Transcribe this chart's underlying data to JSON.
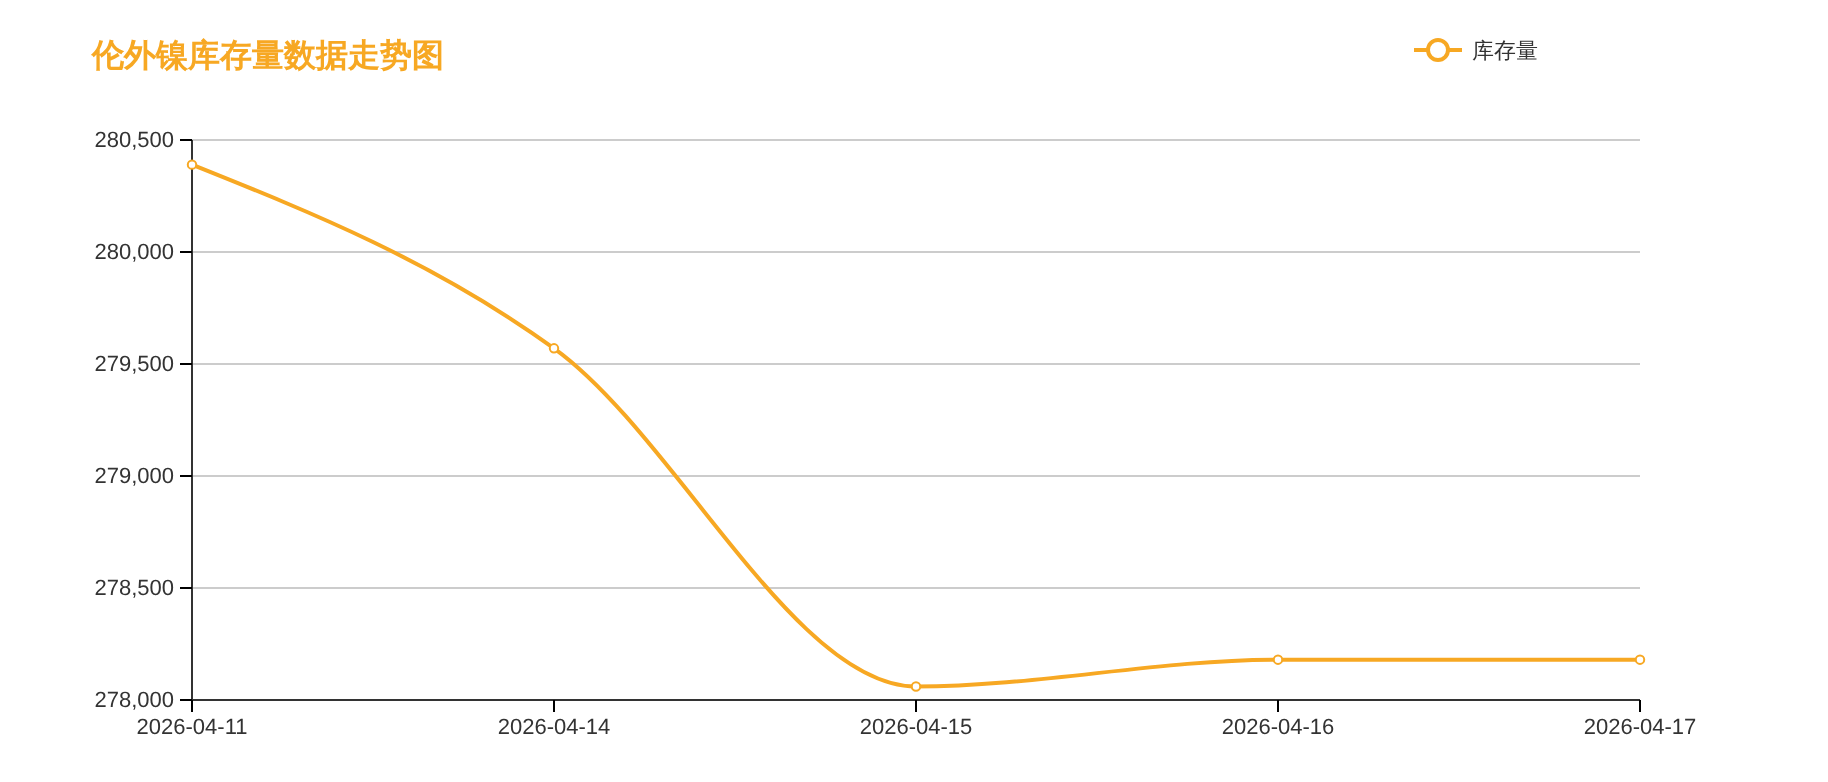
{
  "chart_data": {
    "type": "line",
    "title": "伦外镍库存量数据走势图",
    "categories": [
      "2026-04-11",
      "2026-04-14",
      "2026-04-15",
      "2026-04-16",
      "2026-04-17"
    ],
    "series": [
      {
        "name": "库存量",
        "color": "#f7a823",
        "values": [
          280390,
          279570,
          278060,
          278180,
          278180
        ]
      }
    ],
    "ylim": [
      278000,
      280500
    ],
    "yticks": [
      {
        "value": 278000,
        "label": "278,000"
      },
      {
        "value": 278500,
        "label": "278,500"
      },
      {
        "value": 279000,
        "label": "279,000"
      },
      {
        "value": 279500,
        "label": "279,500"
      },
      {
        "value": 280000,
        "label": "280,000"
      },
      {
        "value": 280500,
        "label": "280,500"
      }
    ],
    "grid": "y",
    "legend": "top right",
    "marker": "circle",
    "line_style": "solid"
  }
}
